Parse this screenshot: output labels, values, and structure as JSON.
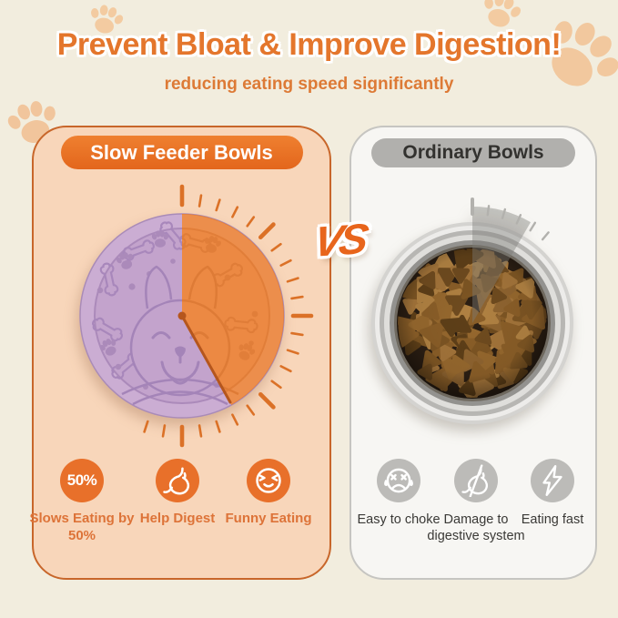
{
  "header": {
    "title": "Prevent Bloat & Improve Digestion!",
    "subtitle": "reducing eating speed significantly"
  },
  "vs_label": "VS",
  "left_panel": {
    "title": "Slow Feeder Bowls",
    "bowl_style": "slow-feeder-maze-bowl",
    "timer_sweep_deg": 151,
    "features": [
      {
        "icon": "badge-50-percent",
        "badge_text": "50%",
        "label": "Slows Eating by 50%"
      },
      {
        "icon": "stomach-icon",
        "label": "Help Digest"
      },
      {
        "icon": "laughing-face-icon",
        "label": "Funny Eating"
      }
    ]
  },
  "right_panel": {
    "title": "Ordinary Bowls",
    "bowl_style": "stainless-steel-kibble-bowl",
    "timer_sweep_deg": 30,
    "drawbacks": [
      {
        "icon": "choking-face-icon",
        "label": "Easy to choke"
      },
      {
        "icon": "damaged-stomach-icon",
        "label": "Damage to digestive system"
      },
      {
        "icon": "lightning-icon",
        "label": "Eating fast"
      }
    ]
  },
  "colors": {
    "cream_bg": "#f2edde",
    "accent_orange": "#e4762c",
    "left_panel_bg": "#f8d6ba",
    "left_panel_border": "#c8662a",
    "pill_orange": "#e9701f",
    "right_panel_bg": "#f7f6f3",
    "pill_gray": "#b1b0ad",
    "bowl_lilac": "#c9aad0",
    "timer_wedge_orange": "#dd7a35",
    "kibble_brown": "#8a5e28",
    "steel_gray": "#d4d3d0",
    "dark_text": "#3a3936"
  }
}
